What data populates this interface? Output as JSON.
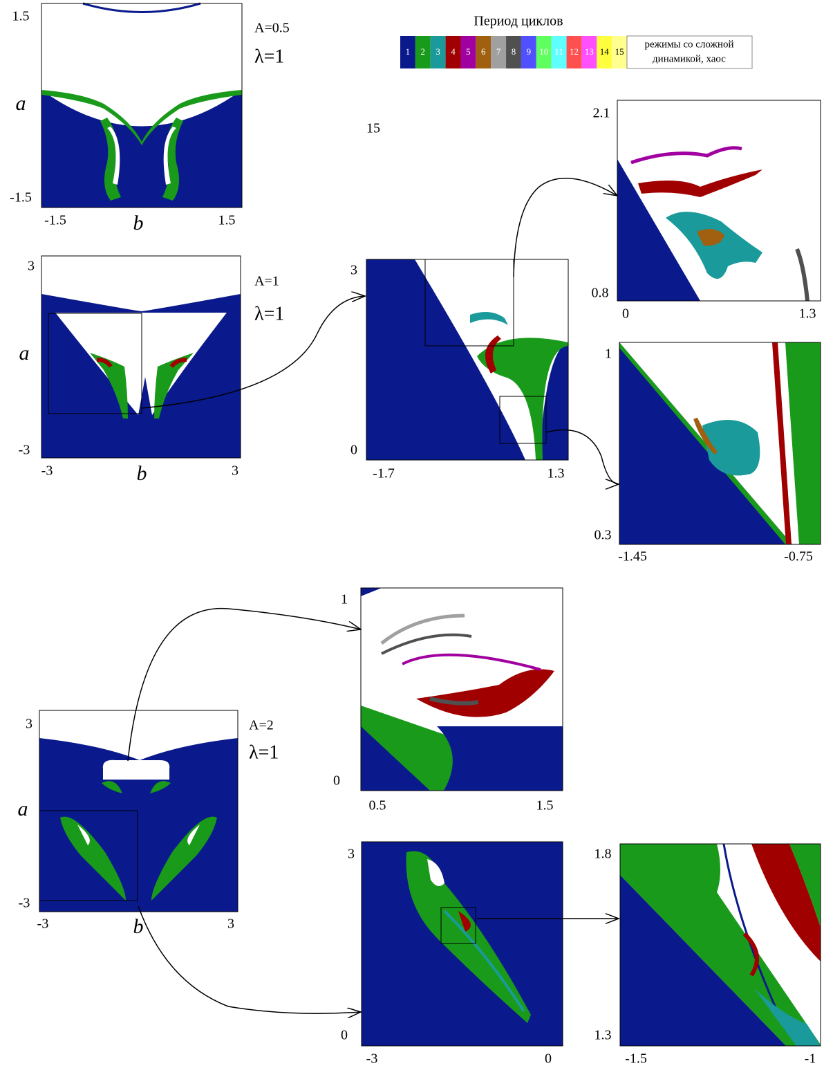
{
  "legend": {
    "title": "Период циклов",
    "periods": [
      "1",
      "2",
      "3",
      "4",
      "5",
      "6",
      "7",
      "8",
      "9",
      "10",
      "11",
      "12",
      "13",
      "14",
      "15"
    ],
    "chaos": [
      "режимы со сложной",
      "динамикой, хаос"
    ]
  },
  "stray_label": "15",
  "panels": [
    {
      "params": [
        "A=0.5",
        "λ=1"
      ],
      "x_label": "b",
      "y_label": "a",
      "x_ticks": [
        "-1.5",
        "1.5"
      ],
      "y_ticks": [
        "1.5",
        "-1.5"
      ]
    },
    {
      "params": [
        "A=1",
        "λ=1"
      ],
      "x_label": "b",
      "y_label": "a",
      "x_ticks": [
        "-3",
        "3"
      ],
      "y_ticks": [
        "3",
        "-3"
      ]
    },
    {
      "x_ticks": [
        "-1.7",
        "1.3"
      ],
      "y_ticks": [
        "3",
        "0"
      ]
    },
    {
      "x_ticks": [
        "0",
        "1.3"
      ],
      "y_ticks": [
        "2.1",
        "0.8"
      ]
    },
    {
      "x_ticks": [
        "-1.45",
        "-0.75"
      ],
      "y_ticks": [
        "1",
        "0.3"
      ]
    },
    {
      "params": [
        "A=2",
        "λ=1"
      ],
      "x_label": "b",
      "y_label": "a",
      "x_ticks": [
        "-3",
        "3"
      ],
      "y_ticks": [
        "3",
        "-3"
      ]
    },
    {
      "x_ticks": [
        "0.5",
        "1.5"
      ],
      "y_ticks": [
        "1",
        "0"
      ]
    },
    {
      "x_ticks": [
        "-3",
        "0"
      ],
      "y_ticks": [
        "3",
        "0"
      ]
    },
    {
      "x_ticks": [
        "-1.5",
        "-1"
      ],
      "y_ticks": [
        "1.8",
        "1.3"
      ]
    }
  ]
}
